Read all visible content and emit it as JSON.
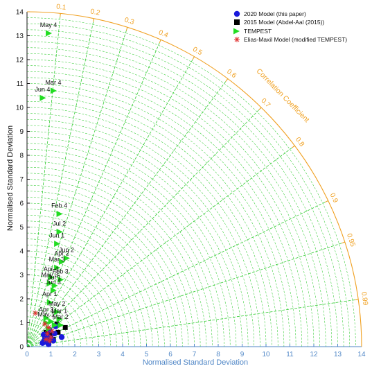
{
  "chart_data": {
    "type": "scatter",
    "subtype": "taylor-diagram",
    "xlabel": "Normalised Standard Deviation",
    "ylabel": "Normalised Standard Deviation",
    "correlation_label": "Correlation Coefficient",
    "xlim": [
      0,
      14
    ],
    "ylim": [
      0,
      14
    ],
    "ticks": [
      "0",
      "1",
      "2",
      "3",
      "4",
      "5",
      "6",
      "7",
      "8",
      "9",
      "10",
      "11",
      "12",
      "13",
      "14"
    ],
    "correlation_ticks": [
      "0.1",
      "0.2",
      "0.3",
      "0.4",
      "0.5",
      "0.6",
      "0.7",
      "0.8",
      "0.9",
      "0.95",
      "0.99"
    ],
    "correlation_values": [
      0.1,
      0.2,
      0.3,
      0.4,
      0.5,
      0.6,
      0.7,
      0.8,
      0.9,
      0.95,
      0.99
    ],
    "grid": true,
    "legend_placement": "top-right",
    "colors": {
      "axes": "#4f86c6",
      "correlation": "#f0a020",
      "grid": "#33cc33",
      "model_2020": "#1a1adc",
      "model_2015": "#000000",
      "tempest": "#22dd22",
      "elias_maxil": "#e03030"
    },
    "series": [
      {
        "name": "2020 Model (this paper)",
        "marker": "circle",
        "points": [
          {
            "x": 0.65,
            "y": 0.15
          },
          {
            "x": 0.75,
            "y": 0.3
          },
          {
            "x": 0.85,
            "y": 0.45
          },
          {
            "x": 1.0,
            "y": 0.35
          },
          {
            "x": 0.8,
            "y": 0.2
          },
          {
            "x": 1.15,
            "y": 0.55
          },
          {
            "x": 0.9,
            "y": 0.1
          },
          {
            "x": 1.45,
            "y": 0.4
          },
          {
            "x": 1.2,
            "y": 0.85
          },
          {
            "x": 0.95,
            "y": 0.7
          },
          {
            "x": 0.7,
            "y": 0.5
          },
          {
            "x": 1.1,
            "y": 0.25
          }
        ]
      },
      {
        "name": "2015 Model (Abdel-Aal (2015))",
        "marker": "square",
        "points": [
          {
            "x": 0.7,
            "y": 0.2
          },
          {
            "x": 0.85,
            "y": 0.35
          },
          {
            "x": 1.0,
            "y": 0.5
          },
          {
            "x": 0.8,
            "y": 0.6
          },
          {
            "x": 1.1,
            "y": 0.3
          },
          {
            "x": 1.25,
            "y": 0.95
          },
          {
            "x": 1.6,
            "y": 0.8
          },
          {
            "x": 0.9,
            "y": 0.15
          },
          {
            "x": 1.3,
            "y": 0.6
          },
          {
            "x": 0.75,
            "y": 0.4
          }
        ]
      },
      {
        "name": "TEMPEST",
        "marker": "triangle-right",
        "points": [
          {
            "label": "May 4",
            "x": 0.9,
            "y": 13.1
          },
          {
            "label": "Mar 4",
            "x": 1.1,
            "y": 10.7
          },
          {
            "label": "Jun 4",
            "x": 0.65,
            "y": 10.4
          },
          {
            "label": "Feb 4",
            "x": 1.35,
            "y": 5.55
          },
          {
            "label": "Jul 2",
            "x": 1.35,
            "y": 4.8
          },
          {
            "label": "Jun 1",
            "x": 1.25,
            "y": 4.3
          },
          {
            "label": "Jun 2",
            "x": 1.65,
            "y": 3.7
          },
          {
            "label": "Apr 2",
            "x": 1.45,
            "y": 3.55
          },
          {
            "label": "Mar 3",
            "x": 1.25,
            "y": 3.3
          },
          {
            "label": "Apr 4",
            "x": 1.0,
            "y": 2.9
          },
          {
            "label": "Feb 3",
            "x": 1.4,
            "y": 2.8
          },
          {
            "label": "May 3",
            "x": 0.95,
            "y": 2.65
          },
          {
            "label": "Jul 1",
            "x": 1.15,
            "y": 2.55
          },
          {
            "label": "Jun 3",
            "x": 1.1,
            "y": 2.35
          },
          {
            "label": "Apr 1",
            "x": 0.95,
            "y": 1.85
          },
          {
            "label": "May 2",
            "x": 1.25,
            "y": 1.45
          },
          {
            "label": "Apr 3",
            "x": 0.8,
            "y": 1.2
          },
          {
            "label": "Mar 1",
            "x": 1.35,
            "y": 1.15
          },
          {
            "label": "Mar 2",
            "x": 1.4,
            "y": 0.9
          },
          {
            "label": "May 1",
            "x": 0.8,
            "y": 1.0
          },
          {
            "label": "",
            "x": 1.0,
            "y": 1.05
          },
          {
            "label": "",
            "x": 0.9,
            "y": 0.75
          },
          {
            "label": "",
            "x": 1.15,
            "y": 0.9
          }
        ]
      },
      {
        "name": "Elias-Maxil Model (modified TEMPEST)",
        "marker": "asterisk",
        "points": [
          {
            "x": 0.35,
            "y": 1.4
          },
          {
            "x": 0.75,
            "y": 0.95
          },
          {
            "x": 0.9,
            "y": 0.8
          },
          {
            "x": 0.85,
            "y": 0.55
          },
          {
            "x": 1.0,
            "y": 0.4
          },
          {
            "x": 0.95,
            "y": 0.25
          },
          {
            "x": 0.8,
            "y": 0.3
          },
          {
            "x": 1.05,
            "y": 0.65
          }
        ]
      }
    ]
  }
}
